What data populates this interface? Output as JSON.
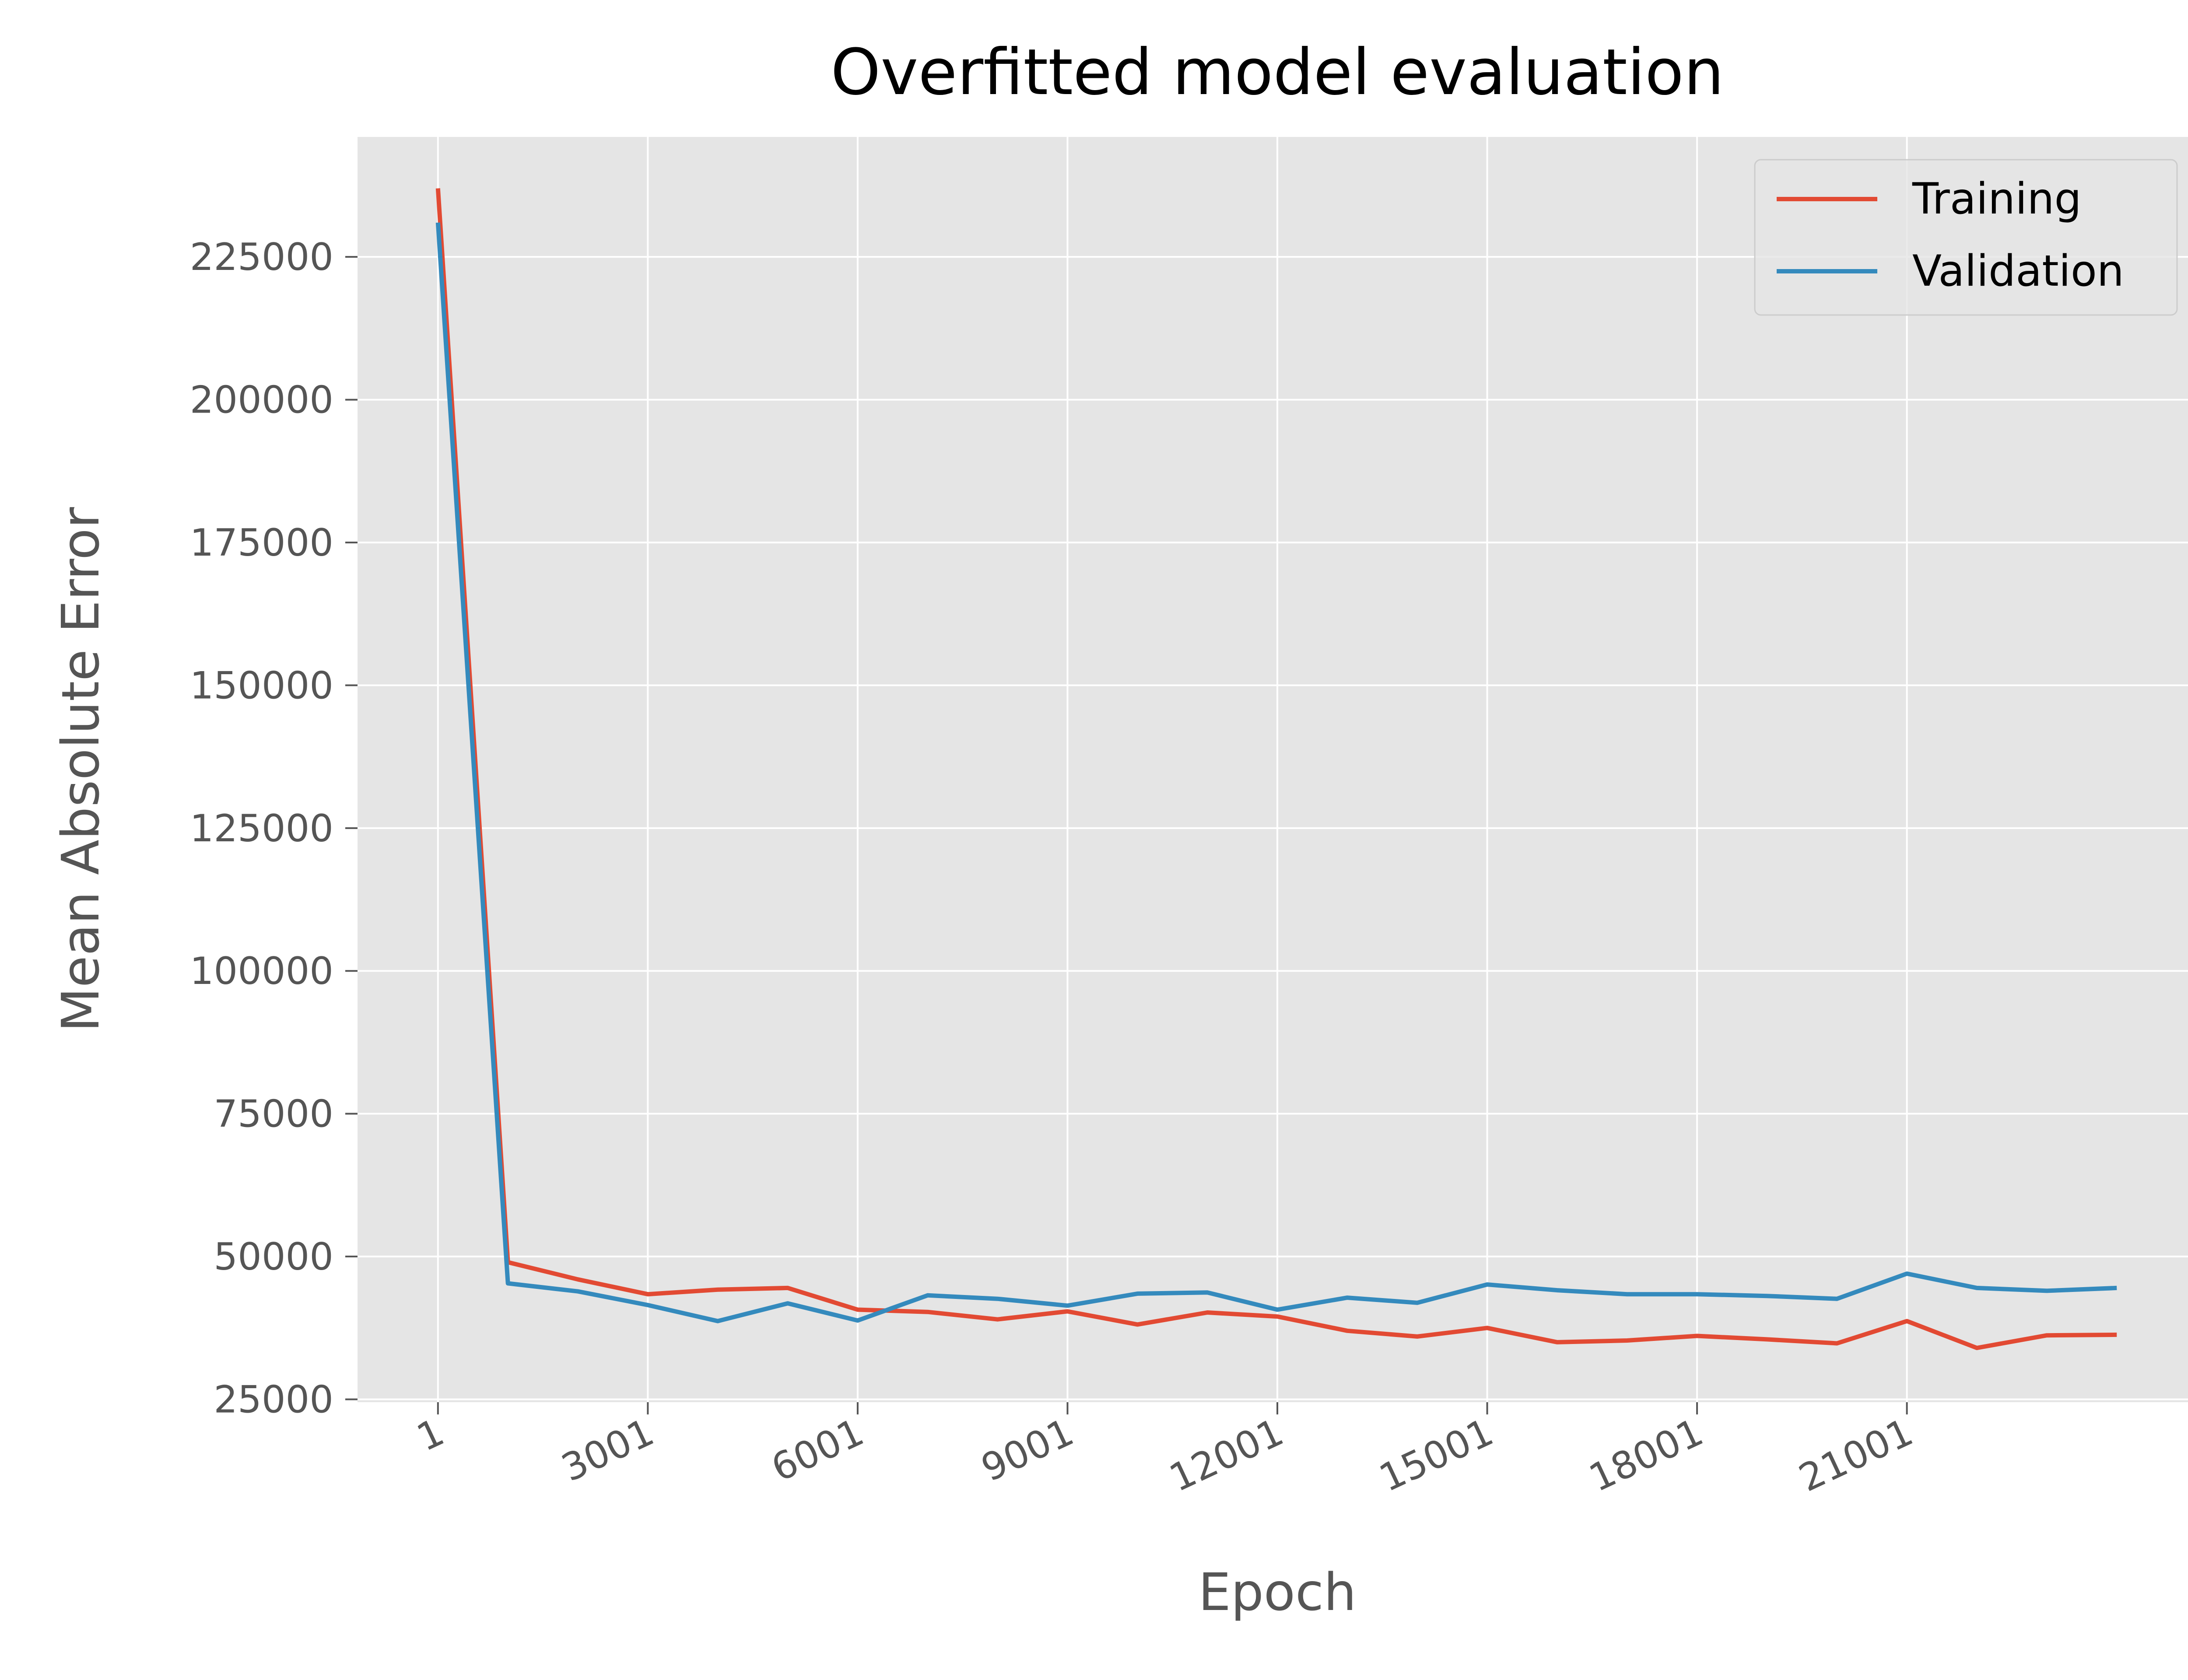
{
  "chart_data": {
    "type": "line",
    "title": "Overfitted model evaluation",
    "xlabel": "Epoch",
    "ylabel": "Mean Absolute Error",
    "x": [
      1,
      1001,
      2001,
      3001,
      4001,
      5001,
      6001,
      7001,
      8001,
      9001,
      10001,
      11001,
      12001,
      13001,
      14001,
      15001,
      16001,
      17001,
      18001,
      19001,
      20001,
      21001,
      22001,
      23001,
      24001
    ],
    "x_ticks": [
      "1",
      "3001",
      "6001",
      "9001",
      "12001",
      "15001",
      "18001",
      "21001"
    ],
    "x_tick_values": [
      1,
      3001,
      6001,
      9001,
      12001,
      15001,
      18001,
      21001
    ],
    "xlim": [
      -1149,
      25151
    ],
    "y_ticks": [
      "25000",
      "50000",
      "75000",
      "100000",
      "125000",
      "150000",
      "175000",
      "200000",
      "225000"
    ],
    "y_tick_values": [
      25000,
      50000,
      75000,
      100000,
      125000,
      150000,
      175000,
      200000,
      225000
    ],
    "ylim": [
      24500,
      246000
    ],
    "grid": true,
    "legend_position": "top-right",
    "series": [
      {
        "name": "Training",
        "color": "#E24A33",
        "values": [
          237000,
          49000,
          46000,
          43400,
          44200,
          44500,
          40700,
          40300,
          39000,
          40400,
          38100,
          40200,
          39500,
          37000,
          36000,
          37500,
          35000,
          35300,
          36100,
          35500,
          34800,
          38700,
          34000,
          36200,
          36300
        ]
      },
      {
        "name": "Validation",
        "color": "#348ABD",
        "values": [
          231000,
          45300,
          43900,
          41500,
          38700,
          41800,
          38800,
          43200,
          42600,
          41400,
          43500,
          43700,
          40700,
          42800,
          41900,
          45100,
          44100,
          43400,
          43400,
          43100,
          42600,
          47000,
          44500,
          44000,
          44500
        ]
      }
    ]
  }
}
